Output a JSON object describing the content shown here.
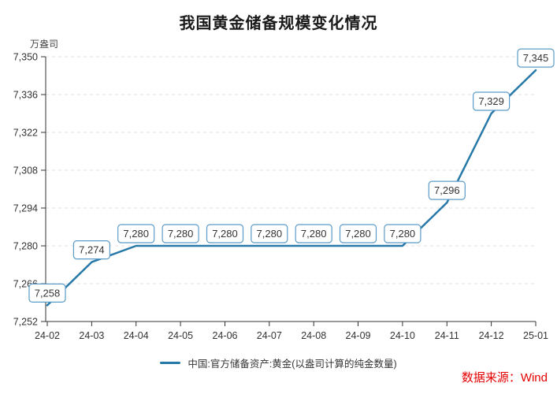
{
  "title": "我国黄金储备规模变化情况",
  "y_axis_unit": "万盎司",
  "legend": {
    "label": "中国:官方储备资产:黄金(以盎司计算的纯金数量)"
  },
  "source_note": "数据来源：Wind",
  "chart_data": {
    "type": "line",
    "title": "我国黄金储备规模变化情况",
    "categories": [
      "24-02",
      "24-03",
      "24-04",
      "24-05",
      "24-06",
      "24-07",
      "24-08",
      "24-09",
      "24-10",
      "24-11",
      "24-12",
      "25-01"
    ],
    "series": [
      {
        "name": "中国:官方储备资产:黄金(以盎司计算的纯金数量)",
        "values": [
          7258,
          7274,
          7280,
          7280,
          7280,
          7280,
          7280,
          7280,
          7280,
          7296,
          7329,
          7345
        ]
      }
    ],
    "xlabel": "",
    "ylabel": "万盎司",
    "ylim": [
      7252,
      7350
    ],
    "y_ticks": [
      7252,
      7266,
      7280,
      7294,
      7308,
      7322,
      7336,
      7350
    ],
    "grid": "horizontal-dashed",
    "legend_position": "bottom-center",
    "data_labels_visible": true,
    "colors": {
      "line": "#2678a8",
      "label_box_border": "#5b9bc8",
      "label_box_fill": "#ffffff",
      "label_text": "#333333",
      "axis": "#333333",
      "grid": "#e2e2e2",
      "tick_label": "#333333",
      "title": "#1a1a1a",
      "source": "#e60000"
    }
  }
}
